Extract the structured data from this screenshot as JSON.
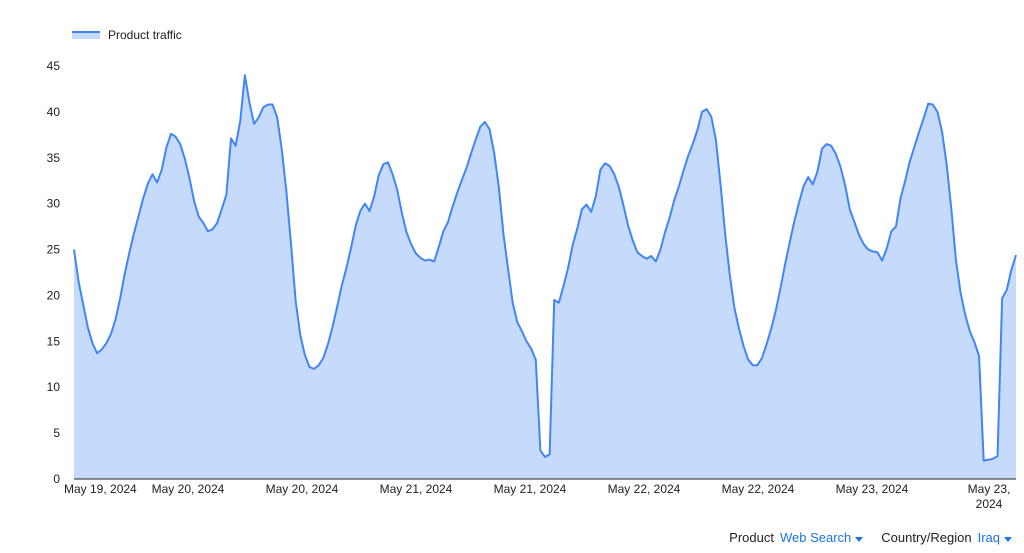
{
  "chart_data": {
    "type": "area",
    "series": [
      {
        "name": "Product traffic",
        "values": [
          25,
          21.5,
          19,
          16.5,
          14.8,
          13.7,
          14.1,
          14.8,
          15.8,
          17.4,
          19.7,
          22.4,
          24.7,
          26.8,
          28.7,
          30.6,
          32.2,
          33.2,
          32.3,
          33.7,
          36.1,
          37.6,
          37.3,
          36.5,
          34.9,
          32.8,
          30.3,
          28.6,
          27.9,
          27,
          27.2,
          27.9,
          29.4,
          31,
          37.1,
          36.3,
          39,
          44,
          41,
          38.7,
          39.4,
          40.5,
          40.8,
          40.8,
          39.4,
          35.9,
          31.3,
          25.6,
          19.4,
          15.7,
          13.5,
          12.2,
          12,
          12.4,
          13.2,
          14.7,
          16.6,
          18.8,
          21.1,
          23,
          25.2,
          27.6,
          29.2,
          30,
          29.2,
          30.8,
          33.1,
          34.3,
          34.5,
          33.2,
          31.5,
          29,
          26.9,
          25.6,
          24.6,
          24.1,
          23.8,
          23.9,
          23.7,
          25.3,
          27,
          28,
          29.7,
          31.2,
          32.6,
          33.9,
          35.5,
          37,
          38.4,
          38.9,
          38.1,
          35.5,
          31.8,
          26.7,
          22.9,
          19.2,
          17.1,
          16.1,
          15,
          14.2,
          13,
          3.1,
          2.4,
          2.7,
          19.5,
          19.2,
          21,
          23,
          25.5,
          27.3,
          29.4,
          29.9,
          29.1,
          30.8,
          33.7,
          34.4,
          34.1,
          33.2,
          31.8,
          29.8,
          27.6,
          26,
          24.7,
          24.3,
          24,
          24.3,
          23.7,
          25,
          26.9,
          28.5,
          30.4,
          31.9,
          33.6,
          35.2,
          36.5,
          38,
          40,
          40.3,
          39.5,
          37,
          32.2,
          26.8,
          22.3,
          18.7,
          16.4,
          14.5,
          13,
          12.4,
          12.4,
          13.2,
          14.7,
          16.4,
          18.4,
          20.8,
          23.4,
          25.8,
          28.1,
          30.1,
          31.9,
          32.9,
          32.1,
          33.5,
          36,
          36.5,
          36.3,
          35.4,
          34,
          32,
          29.4,
          28,
          26.6,
          25.6,
          25,
          24.8,
          24.7,
          23.8,
          25.1,
          27,
          27.5,
          30.6,
          32.5,
          34.6,
          36.2,
          37.8,
          39.3,
          40.9,
          40.8,
          40,
          37.8,
          34.2,
          29.4,
          23.8,
          20.3,
          17.9,
          16.1,
          14.9,
          13.4,
          2,
          2.1,
          2.2,
          2.5,
          19.7,
          20.6,
          22.8,
          24.4
        ]
      }
    ],
    "x_labels": [
      [
        "May 19, 2024"
      ],
      [
        "May 20, 2024"
      ],
      [
        "May 20, 2024"
      ],
      [
        "May 21, 2024"
      ],
      [
        "May 21, 2024"
      ],
      [
        "May 22, 2024"
      ],
      [
        "May 22, 2024"
      ],
      [
        "May 23, 2024"
      ],
      [
        "May 23,",
        "2024"
      ]
    ],
    "y_ticks": [
      0,
      5,
      10,
      15,
      20,
      25,
      30,
      35,
      40,
      45
    ],
    "ylim": [
      0,
      45
    ],
    "legend_position": "top-left",
    "grid": false,
    "colors": {
      "line": "#4285f4",
      "fill": "#c6dafc",
      "axis": "#202124"
    }
  },
  "controls": {
    "product_label": "Product",
    "product_value": "Web Search",
    "country_label": "Country/Region",
    "country_value": "Iraq"
  }
}
